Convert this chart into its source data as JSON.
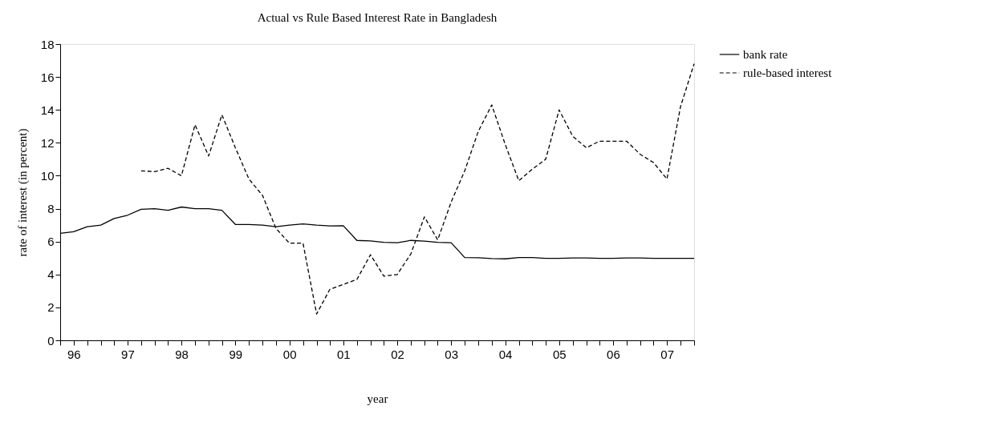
{
  "chart_data": {
    "type": "line",
    "title": "Actual vs Rule Based Interest Rate in Bangladesh",
    "xlabel": "year",
    "ylabel": "rate of interest (in percent)",
    "x": [
      "1996-04",
      "1996-07",
      "1996-10",
      "1997-01",
      "1997-04",
      "1997-07",
      "1997-10",
      "1998-01",
      "1998-04",
      "1998-07",
      "1998-10",
      "1999-01",
      "1999-04",
      "1999-07",
      "1999-10",
      "2000-01",
      "2000-04",
      "2000-07",
      "2000-10",
      "2001-01",
      "2001-04",
      "2001-07",
      "2001-10",
      "2002-01",
      "2002-04",
      "2002-07",
      "2002-10",
      "2003-01",
      "2003-04",
      "2003-07",
      "2003-10",
      "2004-01",
      "2004-04",
      "2004-07",
      "2004-10",
      "2005-01",
      "2005-04",
      "2005-07",
      "2005-10",
      "2006-01",
      "2006-04",
      "2006-07",
      "2006-10",
      "2007-01",
      "2007-04",
      "2007-07",
      "2007-10",
      "2008-01"
    ],
    "series": [
      {
        "name": "bank rate",
        "color": "#000000",
        "line_style": "solid",
        "values": [
          6.5,
          6.6,
          6.9,
          7.0,
          7.4,
          7.6,
          7.96,
          8.0,
          7.9,
          8.1,
          8.0,
          8.0,
          7.9,
          7.04,
          7.04,
          7.0,
          6.9,
          7.0,
          7.07,
          7.0,
          6.95,
          6.96,
          6.07,
          6.04,
          5.95,
          5.93,
          6.07,
          6.03,
          5.95,
          5.93,
          5.03,
          5.02,
          4.97,
          4.95,
          5.03,
          5.03,
          4.98,
          4.98,
          5.0,
          5.0,
          4.98,
          4.98,
          5.0,
          5.0,
          4.98,
          4.98,
          4.98,
          4.98
        ]
      },
      {
        "name": "rule-based interest",
        "color": "#000000",
        "line_style": "dashed",
        "values": [
          null,
          null,
          null,
          null,
          null,
          null,
          10.3,
          10.25,
          10.45,
          10.0,
          13.1,
          11.2,
          13.7,
          11.7,
          9.8,
          8.8,
          6.8,
          5.9,
          5.9,
          1.6,
          3.1,
          3.4,
          3.7,
          5.2,
          3.9,
          4.0,
          5.25,
          7.5,
          6.1,
          8.4,
          10.3,
          12.7,
          14.3,
          11.9,
          9.7,
          10.4,
          11.0,
          14.0,
          12.4,
          11.7,
          12.1,
          12.1,
          12.1,
          11.3,
          10.8,
          9.8,
          14.2,
          16.8
        ]
      }
    ],
    "ylim": [
      0,
      18
    ],
    "yticks": [
      0,
      2,
      4,
      6,
      8,
      10,
      12,
      14,
      16,
      18
    ],
    "xlim": [
      "1996-04",
      "2008-01"
    ],
    "xticks": [
      {
        "value": "1996-04",
        "label": null
      },
      {
        "value": "1996-07",
        "label": "96"
      },
      {
        "value": "1996-10",
        "label": null
      },
      {
        "value": "1997-01",
        "label": null
      },
      {
        "value": "1997-04",
        "label": null
      },
      {
        "value": "1997-07",
        "label": "97"
      },
      {
        "value": "1997-10",
        "label": null
      },
      {
        "value": "1998-01",
        "label": null
      },
      {
        "value": "1998-04",
        "label": null
      },
      {
        "value": "1998-07",
        "label": "98"
      },
      {
        "value": "1998-10",
        "label": null
      },
      {
        "value": "1999-01",
        "label": null
      },
      {
        "value": "1999-04",
        "label": null
      },
      {
        "value": "1999-07",
        "label": "99"
      },
      {
        "value": "1999-10",
        "label": null
      },
      {
        "value": "2000-01",
        "label": null
      },
      {
        "value": "2000-04",
        "label": null
      },
      {
        "value": "2000-07",
        "label": "00"
      },
      {
        "value": "2000-10",
        "label": null
      },
      {
        "value": "2001-01",
        "label": null
      },
      {
        "value": "2001-04",
        "label": null
      },
      {
        "value": "2001-07",
        "label": "01"
      },
      {
        "value": "2001-10",
        "label": null
      },
      {
        "value": "2002-01",
        "label": null
      },
      {
        "value": "2002-04",
        "label": null
      },
      {
        "value": "2002-07",
        "label": "02"
      },
      {
        "value": "2002-10",
        "label": null
      },
      {
        "value": "2003-01",
        "label": null
      },
      {
        "value": "2003-04",
        "label": null
      },
      {
        "value": "2003-07",
        "label": "03"
      },
      {
        "value": "2003-10",
        "label": null
      },
      {
        "value": "2004-01",
        "label": null
      },
      {
        "value": "2004-04",
        "label": null
      },
      {
        "value": "2004-07",
        "label": "04"
      },
      {
        "value": "2004-10",
        "label": null
      },
      {
        "value": "2005-01",
        "label": null
      },
      {
        "value": "2005-04",
        "label": null
      },
      {
        "value": "2005-07",
        "label": "05"
      },
      {
        "value": "2005-10",
        "label": null
      },
      {
        "value": "2006-01",
        "label": null
      },
      {
        "value": "2006-04",
        "label": null
      },
      {
        "value": "2006-07",
        "label": "06"
      },
      {
        "value": "2006-10",
        "label": null
      },
      {
        "value": "2007-01",
        "label": null
      },
      {
        "value": "2007-04",
        "label": null
      },
      {
        "value": "2007-07",
        "label": "07"
      },
      {
        "value": "2007-10",
        "label": null
      },
      {
        "value": "2008-01",
        "label": null
      }
    ],
    "grid": false,
    "legend": "right"
  }
}
